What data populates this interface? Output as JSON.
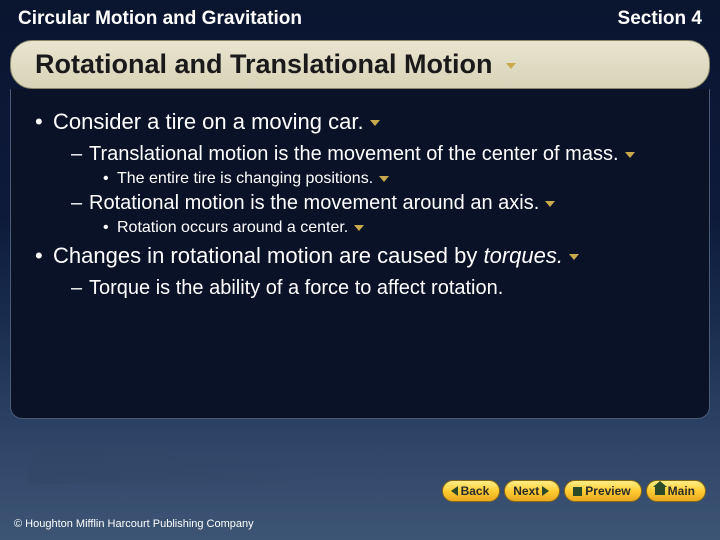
{
  "header": {
    "chapter": "Circular Motion and Gravitation",
    "section": "Section 4"
  },
  "title": "Rotational and Translational Motion",
  "bullets": [
    {
      "level": 1,
      "text": "Consider a tire on a moving car.",
      "marker": true
    },
    {
      "level": 2,
      "text": "Translational motion is the movement of the center of mass.",
      "marker": true
    },
    {
      "level": 3,
      "text": "The entire tire is changing positions.",
      "marker": true
    },
    {
      "level": 2,
      "text": "Rotational motion is the movement around an axis.",
      "marker": true
    },
    {
      "level": 3,
      "text": "Rotation occurs around a center.",
      "marker": true
    },
    {
      "level": 1,
      "html": "Changes in rotational motion are caused by <span class=\"italic\">torques.</span>",
      "marker": true
    },
    {
      "level": 2,
      "text": "Torque is the ability of a force to affect rotation.",
      "marker": false
    }
  ],
  "nav": {
    "back": "Back",
    "next": "Next",
    "preview": "Preview",
    "main": "Main"
  },
  "copyright": "© Houghton Mifflin Harcourt Publishing Company",
  "colors": {
    "bg_top": "#0a1530",
    "bg_bottom": "#3d5575",
    "content_bg": "#0a1228",
    "title_bg": "#e8e4d0",
    "nav_btn": "#ffcc33",
    "marker": "#c9a94a",
    "text": "#ffffff"
  },
  "typography": {
    "header_size": 19,
    "title_size": 27,
    "l1_size": 22,
    "l2_size": 20,
    "l3_size": 16,
    "nav_size": 12,
    "copyright_size": 11
  }
}
